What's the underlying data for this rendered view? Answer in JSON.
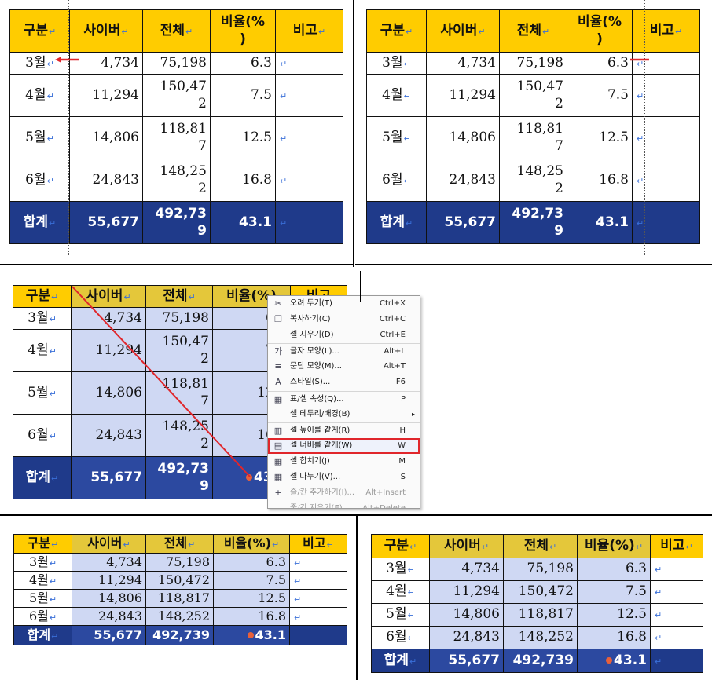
{
  "headers": [
    "구분",
    "사이버",
    "전체",
    "비율(%)",
    "비고"
  ],
  "header_wrap": {
    "ratio_top": "비율(%",
    "ratio_bottom": ")"
  },
  "rows": [
    {
      "month": "3월",
      "cyber": "4,734",
      "total": "75,198",
      "total_top": "",
      "total_bottom": "",
      "ratio": "6.3"
    },
    {
      "month": "4월",
      "cyber": "11,294",
      "total": "150,472",
      "total_top": "150,47",
      "total_bottom": "2",
      "ratio": "7.5"
    },
    {
      "month": "5월",
      "cyber": "14,806",
      "total": "118,817",
      "total_top": "118,81",
      "total_bottom": "7",
      "ratio": "12.5"
    },
    {
      "month": "6월",
      "cyber": "24,843",
      "total": "148,252",
      "total_top": "148,25",
      "total_bottom": "2",
      "ratio": "16.8"
    }
  ],
  "sum_row": {
    "label": "합계",
    "cyber": "55,677",
    "total": "492,739",
    "total_top": "492,73",
    "total_bottom": "9",
    "ratio": "43.1"
  },
  "paragraph_mark": "↵",
  "context_menu": [
    {
      "icon": "scissors-icon",
      "glyph": "✂",
      "label": "오려 두기(T)",
      "shortcut": "Ctrl+X",
      "disabled": false
    },
    {
      "icon": "copy-icon",
      "glyph": "❐",
      "label": "복사하기(C)",
      "shortcut": "Ctrl+C",
      "disabled": false
    },
    {
      "icon": "",
      "glyph": "",
      "label": "셀 지우기(D)",
      "shortcut": "Ctrl+E",
      "disabled": false
    },
    {
      "icon": "font-icon",
      "glyph": "가",
      "label": "글자 모양(L)...",
      "shortcut": "Alt+L",
      "disabled": false,
      "sep": true
    },
    {
      "icon": "paragraph-icon",
      "glyph": "≡",
      "label": "문단 모양(M)...",
      "shortcut": "Alt+T",
      "disabled": false
    },
    {
      "icon": "style-icon",
      "glyph": "A",
      "label": "스타일(S)...",
      "shortcut": "F6",
      "disabled": false
    },
    {
      "icon": "table-props-icon",
      "glyph": "▦",
      "label": "표/셀 속성(Q)...",
      "shortcut": "P",
      "disabled": false,
      "sep": true
    },
    {
      "icon": "",
      "glyph": "",
      "label": "셀 테두리/배경(B)",
      "shortcut": "",
      "disabled": false,
      "submenu": true
    },
    {
      "icon": "equal-height-icon",
      "glyph": "▥",
      "label": "셀 높이를 같게(R)",
      "shortcut": "H",
      "disabled": false,
      "sep": true
    },
    {
      "icon": "equal-width-icon",
      "glyph": "▤",
      "label": "셀 너비를 같게(W)",
      "shortcut": "W",
      "disabled": false,
      "highlight": true
    },
    {
      "icon": "merge-icon",
      "glyph": "▦",
      "label": "셀 합치기(J)",
      "shortcut": "M",
      "disabled": false
    },
    {
      "icon": "split-icon",
      "glyph": "▦",
      "label": "셀 나누기(V)...",
      "shortcut": "S",
      "disabled": false
    },
    {
      "icon": "add-row-icon",
      "glyph": "+",
      "label": "줄/칸 추가하기(I)...",
      "shortcut": "Alt+Insert",
      "disabled": true
    },
    {
      "icon": "delete-row-icon",
      "glyph": "−",
      "label": "줄/칸 지우기(E)...",
      "shortcut": "Alt+Delete",
      "disabled": true
    }
  ],
  "colors": {
    "header": "#ffcc00",
    "sum_row": "#1f3a8a",
    "selection": "#cfd8f3",
    "red_marker": "#e0262b"
  }
}
